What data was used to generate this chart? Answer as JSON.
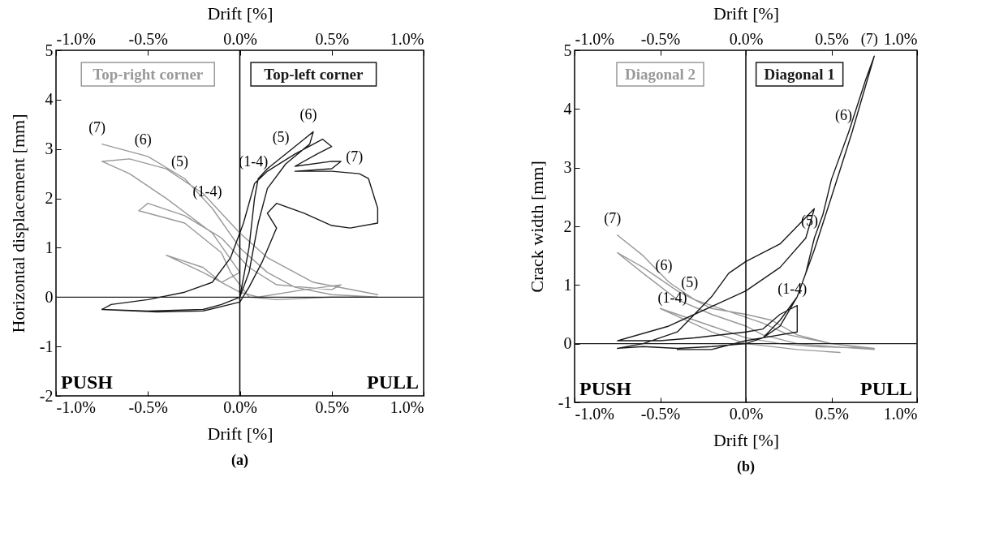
{
  "chart_data": [
    {
      "type": "line",
      "title": "(a)",
      "xlabel": "Drift [%]",
      "x2label": "Drift [%]",
      "ylabel": "Horizontal displacement [mm]",
      "legend": "top",
      "xlim": [
        -1,
        1
      ],
      "xticks": [
        {
          "value": -1,
          "label": "-1.0%"
        },
        {
          "value": -0.5,
          "label": "-0.5%"
        },
        {
          "value": 0,
          "label": "0.0%"
        },
        {
          "value": 0.5,
          "label": "0.5%"
        },
        {
          "value": 1,
          "label": "1.0%"
        }
      ],
      "x2lim": [
        -1,
        1
      ],
      "x2ticks": [
        {
          "value": -1,
          "label": "-1.0%"
        },
        {
          "value": -0.5,
          "label": "-0.5%"
        },
        {
          "value": 0,
          "label": "0.0%"
        },
        {
          "value": 0.5,
          "label": "0.5%"
        },
        {
          "value": 1,
          "label": "1.0%"
        }
      ],
      "ylim": [
        -2,
        5
      ],
      "yticks": [
        -2,
        -1,
        0,
        1,
        2,
        3,
        4,
        5
      ],
      "series": [
        {
          "name": "Top-right corner",
          "color": "#999999",
          "x": [
            -0.75,
            -0.5,
            -0.3,
            -0.15,
            0,
            0.15,
            0.3,
            0.5,
            0.75,
            0.5,
            0.2,
            0.05,
            -0.05,
            -0.1,
            -0.3,
            -0.55,
            -0.5,
            -0.3,
            -0.1,
            0.05,
            0.2,
            0.5,
            0.55,
            0.35,
            0.1,
            0,
            -0.1,
            -0.2,
            -0.4,
            -0.2,
            -0.1,
            0,
            -0.15,
            -0.4,
            -0.6,
            -0.75,
            -0.6,
            -0.4,
            -0.2,
            0,
            0.15,
            0.4,
            0.75
          ],
          "values": [
            3.1,
            2.85,
            2.4,
            1.8,
            1.0,
            0.5,
            0.2,
            0.05,
            0.0,
            0.0,
            -0.05,
            0.0,
            0.5,
            0.9,
            1.5,
            1.75,
            1.9,
            1.65,
            1.2,
            0.6,
            0.25,
            0.15,
            0.25,
            0.15,
            0.0,
            0.1,
            0.3,
            0.6,
            0.85,
            0.5,
            0.3,
            0.5,
            1.3,
            2.0,
            2.5,
            2.75,
            2.8,
            2.6,
            2.1,
            1.3,
            0.8,
            0.3,
            0.05
          ]
        },
        {
          "name": "Top-left corner",
          "color": "#1a1a1a",
          "x": [
            0,
            0.05,
            0.08,
            0.1,
            0.15,
            0.25,
            0.35,
            0.4,
            0.38,
            0.25,
            0.15,
            0.1,
            0.05,
            0,
            -0.1,
            -0.2,
            -0.5,
            -0.75,
            -0.7,
            -0.5,
            -0.3,
            -0.15,
            -0.05,
            0.02,
            0.08,
            0.15,
            0.3,
            0.45,
            0.5,
            0.42,
            0.3,
            0.5,
            0.55,
            0.5,
            0.3,
            0.5,
            0.65,
            0.7,
            0.75,
            0.75,
            0.6,
            0.5,
            0.35,
            0.2,
            0.15,
            0.2,
            0.12,
            0.05,
            0,
            -0.2,
            -0.45,
            -0.75
          ],
          "values": [
            0,
            1.0,
            2.0,
            2.4,
            2.6,
            2.9,
            3.2,
            3.35,
            3.1,
            2.7,
            2.2,
            1.5,
            0.5,
            0,
            -0.15,
            -0.25,
            -0.28,
            -0.25,
            -0.15,
            -0.05,
            0.1,
            0.3,
            0.8,
            1.5,
            2.3,
            2.55,
            2.9,
            3.2,
            3.05,
            2.9,
            2.65,
            2.75,
            2.75,
            2.6,
            2.55,
            2.55,
            2.5,
            2.4,
            1.8,
            1.5,
            1.4,
            1.45,
            1.7,
            1.9,
            1.7,
            1.4,
            0.7,
            0.2,
            -0.1,
            -0.28,
            -0.3,
            -0.25
          ]
        }
      ],
      "ref_lines": [
        {
          "axis": "x",
          "value": 0,
          "color": "#000000"
        },
        {
          "axis": "y",
          "value": 0,
          "color": "#222222"
        }
      ],
      "annotations": [
        {
          "text": "(7)",
          "x": -0.75,
          "y": 3.1
        },
        {
          "text": "(6)",
          "x": -0.5,
          "y": 2.85
        },
        {
          "text": "(5)",
          "x": -0.3,
          "y": 2.4
        },
        {
          "text": "(1-4)",
          "x": -0.15,
          "y": 1.8
        },
        {
          "text": "(1-4)",
          "x": 0.1,
          "y": 2.4
        },
        {
          "text": "(5)",
          "x": 0.25,
          "y": 2.9
        },
        {
          "text": "(6)",
          "x": 0.4,
          "y": 3.35
        },
        {
          "text": "(7)",
          "x": 0.65,
          "y": 2.5
        },
        "PUSH",
        "PULL"
      ]
    },
    {
      "type": "line",
      "title": "(b)",
      "xlabel": "Drift [%]",
      "x2label": "Drift [%]",
      "ylabel": "Crack width [mm]",
      "legend": "top",
      "xlim": [
        -1,
        1
      ],
      "xticks": [
        {
          "value": -1,
          "label": "-1.0%"
        },
        {
          "value": -0.5,
          "label": "-0.5%"
        },
        {
          "value": 0,
          "label": "0.0%"
        },
        {
          "value": 0.5,
          "label": "0.5%"
        },
        {
          "value": 1,
          "label": "1.0%"
        }
      ],
      "x2lim": [
        -1,
        1
      ],
      "x2ticks": [
        {
          "value": -1,
          "label": "-1.0%"
        },
        {
          "value": -0.5,
          "label": "-0.5%"
        },
        {
          "value": 0,
          "label": "0.0%"
        },
        {
          "value": 0.5,
          "label": "0.5%"
        },
        {
          "value": 1,
          "label": "1.0%"
        }
      ],
      "ylim": [
        -1,
        5
      ],
      "yticks": [
        -1,
        0,
        1,
        2,
        3,
        4,
        5
      ],
      "series": [
        {
          "name": "Diagonal 2",
          "color": "#999999",
          "x": [
            -0.75,
            -0.6,
            -0.45,
            -0.3,
            -0.1,
            0,
            0.1,
            0.25,
            0.5,
            0.75,
            0.5,
            0.3,
            0.1,
            0,
            -0.2,
            -0.4,
            -0.6,
            -0.75,
            -0.6,
            -0.4,
            -0.2,
            0,
            0.15,
            0.3,
            0.5,
            0.75,
            0.4,
            0.2,
            0,
            -0.2,
            -0.4,
            -0.5,
            -0.35,
            -0.2,
            0,
            0.3,
            0.55
          ],
          "values": [
            1.85,
            1.5,
            1.05,
            0.75,
            0.55,
            0.45,
            0.35,
            0.15,
            0.0,
            -0.1,
            -0.05,
            0.0,
            0.15,
            0.3,
            0.5,
            0.75,
            1.2,
            1.55,
            1.3,
            0.9,
            0.6,
            0.5,
            0.4,
            0.15,
            0.0,
            -0.08,
            -0.05,
            0.0,
            0.1,
            0.3,
            0.5,
            0.6,
            0.4,
            0.2,
            0.0,
            -0.1,
            -0.15
          ]
        },
        {
          "name": "Diagonal 1",
          "color": "#1a1a1a",
          "x": [
            0,
            0.1,
            0.2,
            0.3,
            0.35,
            0.4,
            0.45,
            0.5,
            0.6,
            0.7,
            0.75,
            0.73,
            0.62,
            0.5,
            0.4,
            0.3,
            0.2,
            0.1,
            0,
            -0.2,
            -0.4,
            -0.6,
            -0.75,
            -0.6,
            -0.4,
            -0.3,
            -0.2,
            -0.1,
            0,
            0.2,
            0.4,
            0.35,
            0.2,
            0,
            -0.15,
            -0.3,
            -0.45,
            -0.75,
            -0.5,
            -0.3,
            0,
            0.1,
            0.2,
            0.3,
            0.3,
            0.1,
            0,
            -0.2,
            -0.4
          ],
          "values": [
            0,
            0.1,
            0.4,
            0.8,
            1.2,
            1.8,
            2.2,
            2.8,
            3.6,
            4.5,
            4.9,
            4.7,
            3.6,
            2.5,
            1.6,
            0.8,
            0.3,
            0.1,
            0.0,
            -0.05,
            -0.08,
            -0.05,
            -0.08,
            0.0,
            0.2,
            0.5,
            0.8,
            1.2,
            1.4,
            1.7,
            2.3,
            1.8,
            1.3,
            0.9,
            0.7,
            0.5,
            0.3,
            0.05,
            0.05,
            0.1,
            0.2,
            0.25,
            0.5,
            0.65,
            0.2,
            0.1,
            0.05,
            -0.1,
            -0.1
          ]
        }
      ],
      "ref_lines": [
        {
          "axis": "x",
          "value": 0,
          "color": "#000000"
        },
        {
          "axis": "y",
          "value": 0,
          "color": "#222222"
        }
      ],
      "annotations": [
        {
          "text": "(7)",
          "x": -0.75,
          "y": 1.85
        },
        {
          "text": "(6)",
          "x": -0.45,
          "y": 1.05
        },
        {
          "text": "(5)",
          "x": -0.3,
          "y": 0.75
        },
        {
          "text": "(1-4)",
          "x": -0.4,
          "y": 0.5
        },
        {
          "text": "(7)",
          "x": 0.75,
          "y": 4.9
        },
        {
          "text": "(6)",
          "x": 0.6,
          "y": 3.6
        },
        {
          "text": "(5)",
          "x": 0.4,
          "y": 1.8
        },
        {
          "text": "(1-4)",
          "x": 0.3,
          "y": 0.65
        },
        "PUSH",
        "PULL"
      ]
    }
  ]
}
